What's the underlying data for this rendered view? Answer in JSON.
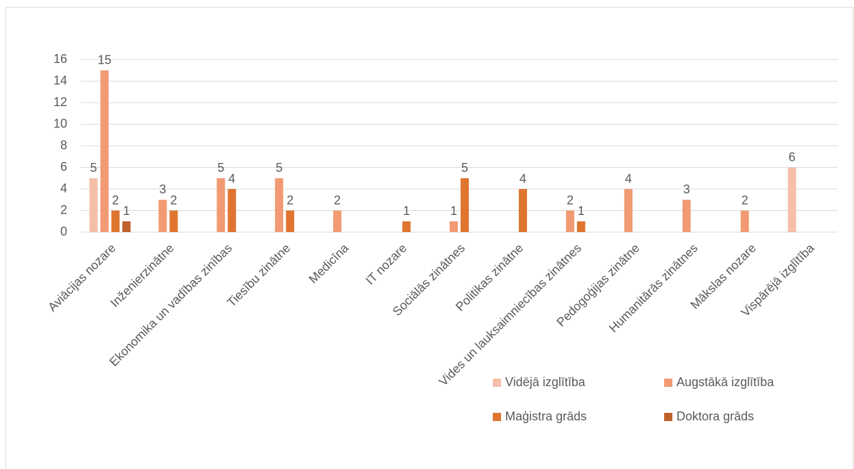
{
  "chart_data": {
    "type": "bar",
    "categories": [
      "Aviācijas nozare",
      "Inženierzinātne",
      "Ekonomika un vadības zinības",
      "Tiesību zinātne",
      "Medicīna",
      "IT nozare",
      "Sociālās zinātnes",
      "Politikas zinātne",
      "Vides un lauksaimniecības zinātnes",
      "Pedogoģijas zinātne",
      "Humanitārās zinātnes",
      "Mākslas nozare",
      "Vispārējā izglītība"
    ],
    "series": [
      {
        "name": "Vidējā izglītība",
        "color": "#f4bfa8",
        "values": [
          5,
          null,
          null,
          null,
          null,
          null,
          null,
          null,
          null,
          null,
          null,
          null,
          6
        ]
      },
      {
        "name": "Augstākā izglītība",
        "color": "#f19a73",
        "values": [
          15,
          3,
          5,
          5,
          2,
          null,
          1,
          null,
          2,
          4,
          3,
          2,
          null
        ]
      },
      {
        "name": "Maģistra grāds",
        "color": "#e07530",
        "values": [
          2,
          2,
          4,
          2,
          null,
          1,
          5,
          4,
          1,
          null,
          null,
          null,
          null
        ]
      },
      {
        "name": "Doktora grāds",
        "color": "#c0612b",
        "values": [
          1,
          null,
          null,
          null,
          null,
          null,
          null,
          null,
          null,
          null,
          null,
          null,
          null
        ]
      }
    ],
    "ylim": [
      0,
      16
    ],
    "yticks": [
      0,
      2,
      4,
      6,
      8,
      10,
      12,
      14,
      16
    ],
    "grid": true,
    "legend": "bottom-right"
  }
}
